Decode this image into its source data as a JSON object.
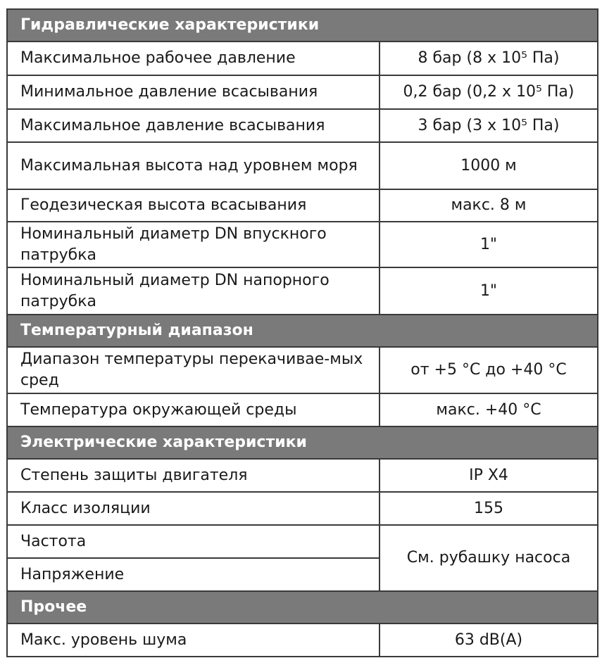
{
  "sections": [
    {
      "title": "Гидравлические характеристики",
      "rows": [
        {
          "label": "Максимальное рабочее давление",
          "value": "8 бар (8 x 10⁵ Па)"
        },
        {
          "label": "Минимальное давление всасывания",
          "value": "0,2 бар (0,2 x 10⁵ Па)"
        },
        {
          "label": "Максимальное давление всасывания",
          "value": "3 бар (3 x 10⁵ Па)"
        },
        {
          "label": "Максимальная высота над уровнем моря",
          "value": "1000 м"
        },
        {
          "label": "Геодезическая высота всасывания",
          "value": "макс. 8 м"
        },
        {
          "label": "Номинальный диаметр DN впускного патрубка",
          "value": "1\""
        },
        {
          "label": "Номинальный диаметр DN напорного патрубка",
          "value": "1\""
        }
      ]
    },
    {
      "title": "Температурный диапазон",
      "rows": [
        {
          "label": "Диапазон температуры перекачивае-мых сред",
          "value": "от +5 °C до +40 °C"
        },
        {
          "label": "Температура окружающей среды",
          "value": "макс. +40 °C"
        }
      ]
    },
    {
      "title": "Электрические характеристики",
      "rows": [
        {
          "label": "Степень защиты двигателя",
          "value": "IP X4"
        },
        {
          "label": "Класс изоляции",
          "value": "155"
        },
        {
          "label": "Частота",
          "value": "См. рубашку насоса"
        },
        {
          "label": "Напряжение"
        }
      ]
    },
    {
      "title": "Прочее",
      "rows": [
        {
          "label": "Макс. уровень шума",
          "value": "63 dB(A)"
        }
      ]
    }
  ],
  "colors": {
    "section_header_bg": "#7a7a7a",
    "border": "#3a3a3a"
  }
}
